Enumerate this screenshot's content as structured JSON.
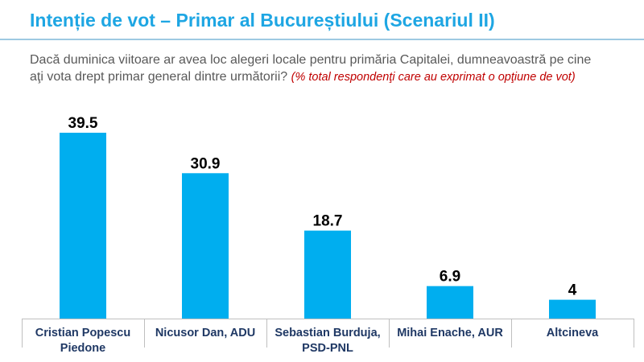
{
  "header": {
    "title": "Intenție de vot – Primar al Bucureștiului (Scenariul II)"
  },
  "question": {
    "line1": "Dacă duminica viitoare ar avea loc alegeri locale pentru primăria Capitalei,  dumneavoastră pe cine",
    "line2": "aţi vota drept primar general dintre următorii?",
    "note": "(% total respondenţi care au exprimat o opţiune de vot)"
  },
  "colors": {
    "bar": "#00aeef",
    "title": "#1ea6e3",
    "category_label": "#1f3864"
  },
  "chart_data": {
    "type": "bar",
    "categories": [
      [
        "Cristian Popescu",
        "Piedone"
      ],
      [
        "Nicusor Dan, ADU"
      ],
      [
        "Sebastian Burduja,",
        "PSD-PNL"
      ],
      [
        "Mihai Enache, AUR"
      ],
      [
        "Altcineva"
      ]
    ],
    "values": [
      39.5,
      30.9,
      18.7,
      6.9,
      4
    ],
    "value_labels": [
      "39.5",
      "30.9",
      "18.7",
      "6.9",
      "4"
    ],
    "ylim": [
      0,
      40
    ],
    "grid": false
  }
}
